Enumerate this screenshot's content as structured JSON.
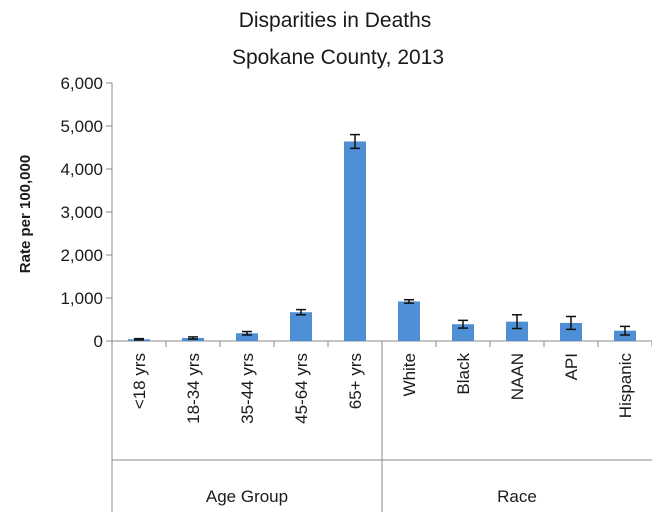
{
  "chart_data": {
    "type": "bar",
    "title": "Disparities in Deaths",
    "subtitle": "Spokane County, 2013",
    "xlabel": "",
    "ylabel": "Rate per 100,000",
    "ylim": [
      0,
      6000
    ],
    "ytick_labels": [
      "0",
      "1,000",
      "2,000",
      "3,000",
      "4,000",
      "5,000",
      "6,000"
    ],
    "grid": false,
    "legend": "none",
    "bar_color": "#4f8fd6",
    "groups": [
      {
        "name": "Age Group",
        "categories": [
          "<18 yrs",
          "18-34 yrs",
          "35-44 yrs",
          "45-64 yrs",
          "65+ yrs"
        ],
        "values": [
          40,
          70,
          180,
          670,
          4640
        ],
        "error": [
          15,
          25,
          40,
          60,
          160
        ]
      },
      {
        "name": "Race",
        "categories": [
          "White",
          "Black",
          "NAAN",
          "API",
          "Hispanic"
        ],
        "values": [
          920,
          390,
          450,
          420,
          240
        ],
        "error": [
          40,
          90,
          160,
          150,
          100
        ]
      }
    ]
  }
}
